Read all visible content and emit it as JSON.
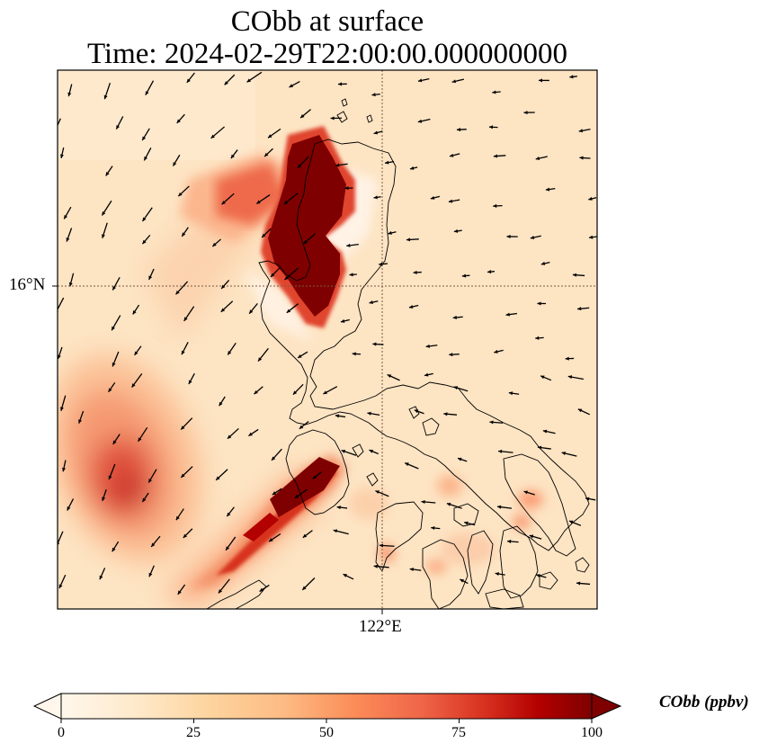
{
  "title": {
    "line1": "CObb at surface",
    "line2": "Time: 2024-02-29T22:00:00.000000000"
  },
  "map": {
    "lat_label": "16°N",
    "lon_label": "122°E",
    "gridlines": "dotted",
    "coastlines": true,
    "wind_vectors": true
  },
  "colorbar": {
    "label": "CObb (ppbv)",
    "ticks": [
      "0",
      "25",
      "50",
      "75",
      "100"
    ],
    "min": 0,
    "max": 100,
    "colormap": "OrRd",
    "extend": "both",
    "colors": [
      "#fff7ec",
      "#fee8c8",
      "#fdd49e",
      "#fdbb84",
      "#fc8d59",
      "#ef6548",
      "#d7301f",
      "#b30000",
      "#7f0000"
    ]
  },
  "chart_data": {
    "type": "heatmap",
    "title": "CObb at surface\nTime: 2024-02-29T22:00:00.000000000",
    "variable": "CObb",
    "units": "ppbv",
    "value_range": [
      0,
      100
    ],
    "plumes": [
      {
        "region": "north of 16°N, west of 122°E",
        "peak_ppbv": 100
      },
      {
        "region": "south of 16°N, west of 122°E (near 122°E)",
        "peak_ppbv": 100
      },
      {
        "region": "far west, south of 16°N",
        "peak_ppbv": 85
      },
      {
        "region": "background",
        "peak_ppbv": 20
      }
    ]
  }
}
